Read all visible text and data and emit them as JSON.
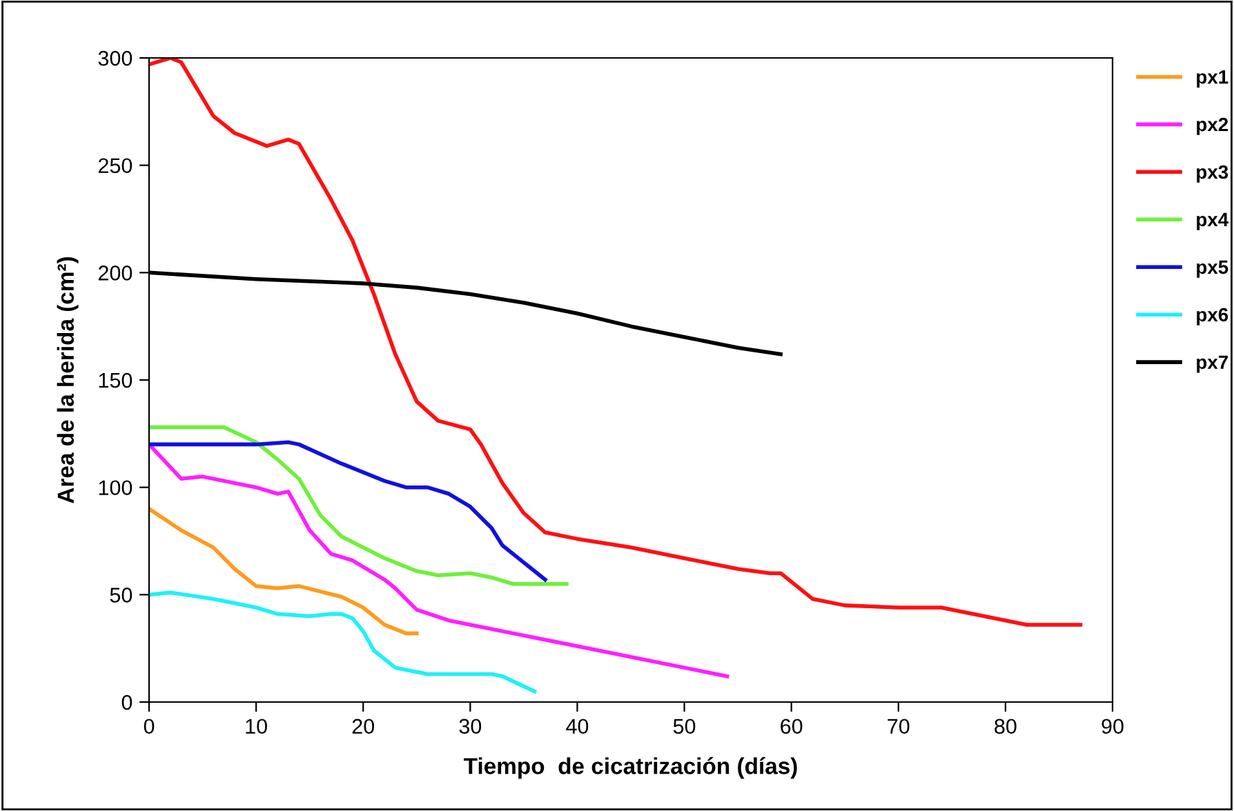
{
  "chart_data": {
    "type": "line",
    "xlabel": "Tiempo  de cicatrización (días)",
    "ylabel": "Area de la herida (cm²)",
    "xlim": [
      0,
      90
    ],
    "xticks": [
      0,
      10,
      20,
      30,
      40,
      50,
      60,
      70,
      80,
      90
    ],
    "ylim": [
      0,
      300
    ],
    "yticks": [
      0,
      50,
      100,
      150,
      200,
      250,
      300
    ],
    "grid": false,
    "legend": "right",
    "marker": "none",
    "line_style": "solid",
    "series": [
      {
        "name": "px1",
        "color": "#ff9a1f",
        "x": [
          0,
          3,
          6,
          8,
          10,
          12,
          14,
          18,
          20,
          22,
          24,
          25
        ],
        "values": [
          90,
          80,
          72,
          62,
          54,
          53,
          54,
          49,
          44,
          36,
          32,
          32
        ]
      },
      {
        "name": "px2",
        "color": "#ff1fff",
        "x": [
          0,
          3,
          5,
          10,
          12,
          13,
          15,
          17,
          19,
          22,
          23,
          25,
          28,
          40,
          54
        ],
        "values": [
          120,
          104,
          105,
          100,
          97,
          98,
          80,
          69,
          66,
          57,
          53,
          43,
          38,
          26,
          12
        ]
      },
      {
        "name": "px3",
        "color": "#ff1010",
        "x": [
          0,
          2,
          3,
          6,
          8,
          11,
          13,
          14,
          17,
          19,
          21,
          23,
          25,
          27,
          30,
          31,
          33,
          35,
          37,
          40,
          45,
          50,
          55,
          58,
          59,
          60,
          62,
          65,
          70,
          74,
          80,
          82,
          87
        ],
        "values": [
          297,
          300,
          298,
          273,
          265,
          259,
          262,
          260,
          234,
          215,
          190,
          162,
          140,
          131,
          127,
          120,
          102,
          88,
          79,
          76,
          72,
          67,
          62,
          60,
          60,
          56,
          48,
          45,
          44,
          44,
          38,
          36,
          36
        ]
      },
      {
        "name": "px4",
        "color": "#6ef03a",
        "x": [
          0,
          5,
          7,
          10,
          12,
          14,
          16,
          18,
          22,
          25,
          27,
          30,
          32,
          34,
          37,
          39
        ],
        "values": [
          128,
          128,
          128,
          121,
          113,
          104,
          87,
          77,
          67,
          61,
          59,
          60,
          58,
          55,
          55,
          55
        ]
      },
      {
        "name": "px5",
        "color": "#1010e0",
        "x": [
          0,
          10,
          13,
          14,
          18,
          22,
          24,
          26,
          28,
          30,
          32,
          33,
          35,
          37
        ],
        "values": [
          120,
          120,
          121,
          120,
          111,
          103,
          100,
          100,
          97,
          91,
          81,
          73,
          65,
          57
        ]
      },
      {
        "name": "px6",
        "color": "#1ff0f8",
        "x": [
          0,
          2,
          6,
          10,
          12,
          15,
          17,
          18,
          19,
          20,
          21,
          23,
          26,
          30,
          32,
          33,
          36
        ],
        "values": [
          50,
          51,
          48,
          44,
          41,
          40,
          41,
          41,
          39,
          33,
          24,
          16,
          13,
          13,
          13,
          12,
          5
        ]
      },
      {
        "name": "px7",
        "color": "#000000",
        "x": [
          0,
          10,
          20,
          25,
          30,
          35,
          40,
          45,
          50,
          55,
          59
        ],
        "values": [
          200,
          197,
          195,
          193,
          190,
          186,
          181,
          175,
          170,
          165,
          162
        ]
      }
    ]
  }
}
